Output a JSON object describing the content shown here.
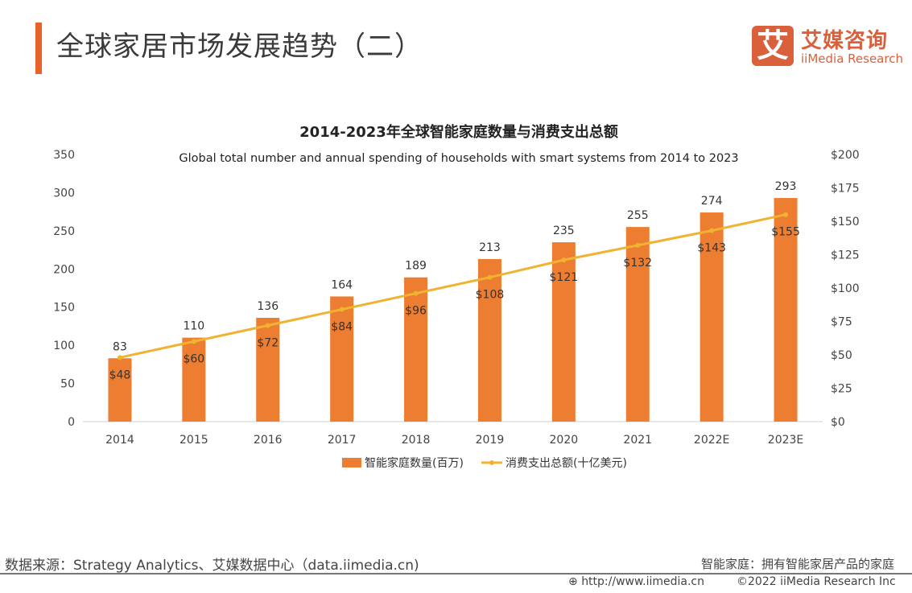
{
  "header": {
    "title": "全球家居市场发展趋势（二）",
    "logo_mark": "艾",
    "logo_cn": "艾媒咨询",
    "logo_en": "iiMedia Research"
  },
  "chart_data": {
    "type": "bar+line",
    "title": "2014-2023年全球智能家庭数量与消费支出总额",
    "subtitle": "Global total number and  annual spending of households with smart systems from 2014 to 2023",
    "categories": [
      "2014",
      "2015",
      "2016",
      "2017",
      "2018",
      "2019",
      "2020",
      "2021",
      "2022E",
      "2023E"
    ],
    "series": [
      {
        "name": "智能家庭数量(百万)",
        "type": "bar",
        "axis": "left",
        "color": "#ed7d31",
        "values": [
          83,
          110,
          136,
          164,
          189,
          213,
          235,
          255,
          274,
          293
        ],
        "labels": [
          "83",
          "110",
          "136",
          "164",
          "189",
          "213",
          "235",
          "255",
          "274",
          "293"
        ]
      },
      {
        "name": "消费支出总额(十亿美元)",
        "type": "line",
        "axis": "right",
        "color": "#f0b331",
        "values": [
          48,
          60,
          72,
          84,
          96,
          108,
          121,
          132,
          143,
          155
        ],
        "labels": [
          "$48",
          "$60",
          "$72",
          "$84",
          "$96",
          "$108",
          "$121",
          "$132",
          "$143",
          "$155"
        ]
      }
    ],
    "left_axis": {
      "ylim": [
        0,
        350
      ],
      "ticks": [
        "0",
        "50",
        "100",
        "150",
        "200",
        "250",
        "300",
        "350"
      ]
    },
    "right_axis": {
      "ylim": [
        0,
        200
      ],
      "ticks": [
        "$0",
        "$25",
        "$50",
        "$75",
        "$100",
        "$125",
        "$150",
        "$175",
        "$200"
      ]
    },
    "grid": false,
    "legend": "bottom"
  },
  "footer": {
    "source": "数据来源：Strategy Analytics、艾媒数据中心（data.iimedia.cn)",
    "note": "智能家庭：拥有智能家居产品的家庭",
    "url": "http://www.iimedia.cn",
    "copyright": "©2022  iiMedia Research  Inc"
  }
}
